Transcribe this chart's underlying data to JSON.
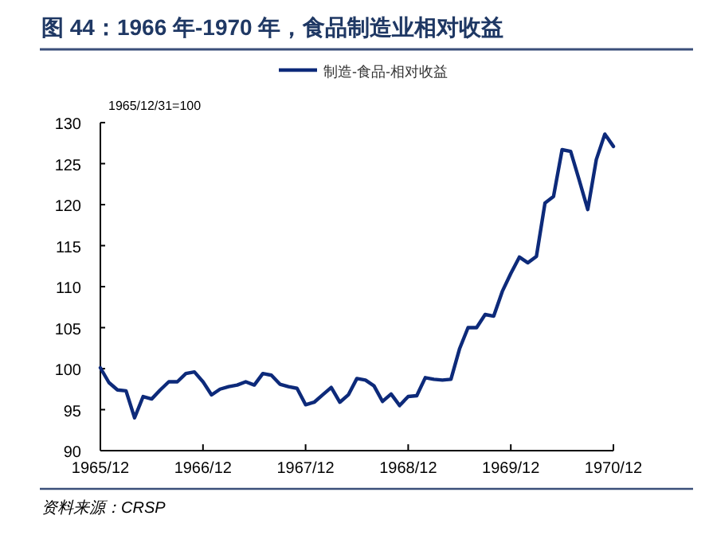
{
  "chart_data": {
    "type": "line",
    "title": "图 44：1966 年-1970 年，食品制造业相对收益",
    "ylabel": "1965/12/31=100",
    "annotations": [
      "资料来源：CRSP"
    ],
    "x": [
      "1965-12",
      "1966-01",
      "1966-02",
      "1966-03",
      "1966-04",
      "1966-05",
      "1966-06",
      "1966-07",
      "1966-08",
      "1966-09",
      "1966-10",
      "1966-11",
      "1966-12",
      "1967-01",
      "1967-02",
      "1967-03",
      "1967-04",
      "1967-05",
      "1967-06",
      "1967-07",
      "1967-08",
      "1967-09",
      "1967-10",
      "1967-11",
      "1967-12",
      "1968-01",
      "1968-02",
      "1968-03",
      "1968-04",
      "1968-05",
      "1968-06",
      "1968-07",
      "1968-08",
      "1968-09",
      "1968-10",
      "1968-11",
      "1968-12",
      "1969-01",
      "1969-02",
      "1969-03",
      "1969-04",
      "1969-05",
      "1969-06",
      "1969-07",
      "1969-08",
      "1969-09",
      "1969-10",
      "1969-11",
      "1969-12",
      "1970-01",
      "1970-02",
      "1970-03",
      "1970-04",
      "1970-05",
      "1970-06",
      "1970-07",
      "1970-08",
      "1970-09",
      "1970-10",
      "1970-11",
      "1970-12"
    ],
    "series": [
      {
        "name": "制造-食品-相对收益",
        "color": "#0d2a7a",
        "values": [
          100.1,
          98.3,
          97.4,
          97.3,
          94.0,
          96.6,
          96.3,
          97.4,
          98.4,
          98.4,
          99.4,
          99.6,
          98.4,
          96.8,
          97.5,
          97.8,
          98.0,
          98.4,
          98.0,
          99.4,
          99.2,
          98.1,
          97.8,
          97.6,
          95.6,
          95.9,
          96.8,
          97.7,
          95.9,
          96.8,
          98.8,
          98.6,
          97.9,
          96.0,
          96.9,
          95.5,
          96.6,
          96.7,
          98.9,
          98.7,
          98.6,
          98.7,
          102.4,
          105.0,
          105.0,
          106.6,
          106.4,
          109.4,
          111.6,
          113.6,
          112.9,
          113.7,
          120.2,
          121.0,
          126.7,
          126.5,
          123.0,
          119.4,
          125.5,
          128.6,
          127.1
        ]
      }
    ],
    "xlim": [
      "1965-12",
      "1970-12"
    ],
    "ylim": [
      90,
      130
    ],
    "xticks": [
      {
        "value": "1965-12",
        "label": "1965/12"
      },
      {
        "value": "1966-12",
        "label": "1966/12"
      },
      {
        "value": "1967-12",
        "label": "1967/12"
      },
      {
        "value": "1968-12",
        "label": "1968/12"
      },
      {
        "value": "1969-12",
        "label": "1969/12"
      },
      {
        "value": "1970-12",
        "label": "1970/12"
      }
    ],
    "yticks": [
      90,
      95,
      100,
      105,
      110,
      115,
      120,
      125,
      130
    ],
    "legend": "top"
  }
}
